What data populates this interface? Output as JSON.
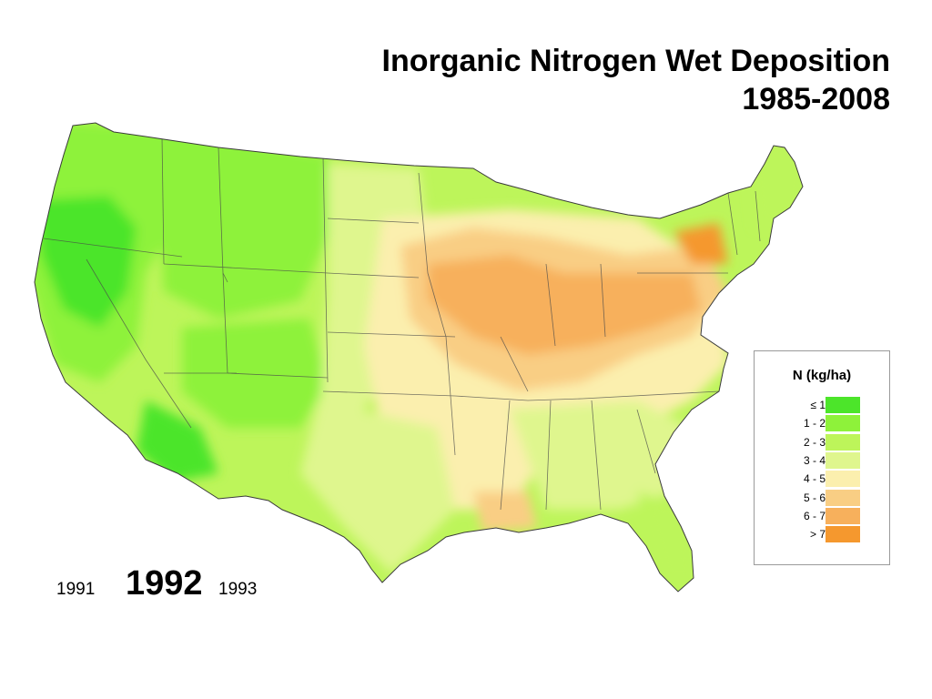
{
  "title": {
    "line1": "Inorganic Nitrogen Wet Deposition",
    "line2": "1985-2008"
  },
  "legend": {
    "title": "N  (kg/ha)",
    "items": [
      {
        "label": "≤ 1",
        "color": "#4ce52a"
      },
      {
        "label": "1 - 2",
        "color": "#8ef23a"
      },
      {
        "label": "2 - 3",
        "color": "#bdf55a"
      },
      {
        "label": "3 - 4",
        "color": "#dff68e"
      },
      {
        "label": "4 - 5",
        "color": "#fbefae"
      },
      {
        "label": "5 - 6",
        "color": "#f9ce84"
      },
      {
        "label": "6 - 7",
        "color": "#f7b05c"
      },
      {
        "label": "> 7",
        "color": "#f5982e"
      }
    ]
  },
  "years": {
    "previous": "1991",
    "current": "1992",
    "next": "1993"
  },
  "map": {
    "region": "contiguous-united-states",
    "colors": {
      "lowest": "#4ce52a",
      "low": "#8ef23a",
      "mid_low": "#bdf55a",
      "mid": "#dff68e",
      "mid_high": "#fbefae",
      "high": "#f9ce84",
      "higher": "#f7b05c",
      "highest": "#f5982e"
    }
  }
}
